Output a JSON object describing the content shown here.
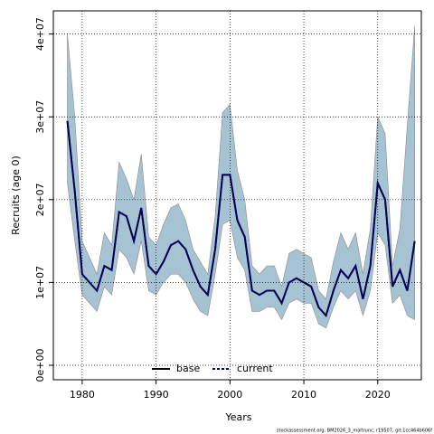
{
  "chart_data": {
    "type": "line",
    "xlabel": "Years",
    "ylabel": "Recruits (age 0)",
    "footer": "stockassessment.org, BM2026_3_maltrunc, r19507, git:1cc464b606f",
    "x": [
      1978,
      1979,
      1980,
      1981,
      1982,
      1983,
      1984,
      1985,
      1986,
      1987,
      1988,
      1989,
      1990,
      1991,
      1992,
      1993,
      1994,
      1995,
      1996,
      1997,
      1998,
      1999,
      2000,
      2001,
      2002,
      2003,
      2004,
      2005,
      2006,
      2007,
      2008,
      2009,
      2010,
      2011,
      2012,
      2013,
      2014,
      2015,
      2016,
      2017,
      2018,
      2019,
      2020,
      2021,
      2022,
      2023,
      2024,
      2025
    ],
    "series": [
      {
        "name": "base",
        "color": "#000000",
        "dash": false,
        "values": [
          29500000,
          21000000,
          11000000,
          10000000,
          9000000,
          12000000,
          11500000,
          18500000,
          18000000,
          15000000,
          19000000,
          12000000,
          11000000,
          12500000,
          14500000,
          15000000,
          14000000,
          11500000,
          9500000,
          8500000,
          14000000,
          23000000,
          23000000,
          17500000,
          15500000,
          9000000,
          8500000,
          9000000,
          9000000,
          7500000,
          10000000,
          10500000,
          10000000,
          9500000,
          7000000,
          6000000,
          9000000,
          11500000,
          10500000,
          12000000,
          8000000,
          12000000,
          22000000,
          20000000,
          9500000,
          11500000,
          9000000,
          15000000
        ]
      },
      {
        "name": "current",
        "color": "#00008b",
        "dash": true,
        "values": [
          29500000,
          21000000,
          11000000,
          10000000,
          9000000,
          12000000,
          11500000,
          18500000,
          18000000,
          15000000,
          19000000,
          12000000,
          11000000,
          12500000,
          14500000,
          15000000,
          14000000,
          11500000,
          9500000,
          8500000,
          14000000,
          23000000,
          23000000,
          17500000,
          15500000,
          9000000,
          8500000,
          9000000,
          9000000,
          7500000,
          10000000,
          10500000,
          10000000,
          9500000,
          7000000,
          6000000,
          9000000,
          11500000,
          10500000,
          12000000,
          8000000,
          12000000,
          22000000,
          20000000,
          9500000,
          11500000,
          9000000,
          15000000
        ]
      }
    ],
    "band": {
      "color": "#a6c3d4",
      "upper": [
        40000000,
        30000000,
        15000000,
        13000000,
        11000000,
        16000000,
        14500000,
        24500000,
        22500000,
        20000000,
        25500000,
        15500000,
        14500000,
        17000000,
        19000000,
        19500000,
        17500000,
        14000000,
        12500000,
        11000000,
        18000000,
        30500000,
        31500000,
        23500000,
        20000000,
        12000000,
        11000000,
        12000000,
        12000000,
        9500000,
        13500000,
        14000000,
        13500000,
        13000000,
        9000000,
        8000000,
        12500000,
        16000000,
        14000000,
        16000000,
        11000000,
        16500000,
        30000000,
        28000000,
        12000000,
        16500000,
        29000000,
        41000000
      ],
      "lower": [
        22000000,
        15000000,
        8500000,
        7500000,
        6500000,
        9500000,
        8500000,
        14000000,
        13000000,
        11000000,
        15000000,
        9000000,
        8500000,
        10000000,
        11000000,
        11000000,
        10000000,
        8000000,
        6500000,
        6000000,
        11000000,
        17000000,
        17500000,
        13000000,
        11500000,
        6500000,
        6500000,
        7000000,
        7000000,
        5500000,
        7500000,
        8000000,
        7500000,
        7500000,
        5000000,
        4500000,
        7000000,
        9000000,
        8000000,
        9000000,
        6000000,
        9000000,
        16000000,
        14500000,
        7500000,
        8500000,
        6000000,
        5500000
      ]
    },
    "xlim": [
      1976.1,
      2025.9
    ],
    "ylim": [
      -1750000,
      42800000
    ],
    "xticks": [
      1980,
      1990,
      2000,
      2010,
      2020
    ],
    "yticks": [
      {
        "value": 0,
        "label": "0e+00"
      },
      {
        "value": 10000000,
        "label": "1e+07"
      },
      {
        "value": 20000000,
        "label": "2e+07"
      },
      {
        "value": 30000000,
        "label": "3e+07"
      },
      {
        "value": 40000000,
        "label": "4e+07"
      }
    ],
    "grid": true,
    "legend": "bottom"
  }
}
